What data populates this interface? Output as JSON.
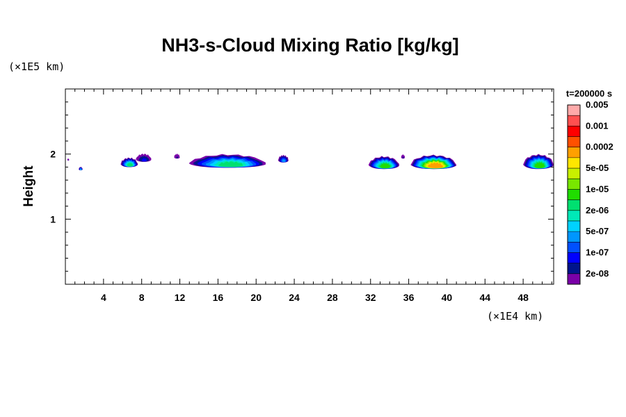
{
  "chart_data": {
    "type": "heatmap",
    "title": "NH3-s-Cloud Mixing Ratio [kg/kg]",
    "ylabel": "Height",
    "xlabel": "",
    "x_unit": "(×1E4 km)",
    "y_unit": "(×1E5 km)",
    "time_label": "t=200000 s",
    "xlim": [
      0,
      51.2
    ],
    "ylim": [
      0,
      3.0
    ],
    "x_ticks": [
      4,
      8,
      12,
      16,
      20,
      24,
      28,
      32,
      36,
      40,
      44,
      48
    ],
    "y_ticks": [
      1,
      2
    ],
    "colorbar": {
      "colors": [
        "#7a00a8",
        "#00148c",
        "#0000ff",
        "#0050ff",
        "#0096ff",
        "#00d2ff",
        "#00e8b8",
        "#00e070",
        "#20dc00",
        "#78e600",
        "#c8f000",
        "#ffe600",
        "#ffa000",
        "#ff5000",
        "#ff0000",
        "#ff5050",
        "#ffaaaa"
      ],
      "labels": [
        "2e-08",
        "1e-07",
        "5e-07",
        "2e-06",
        "1e-05",
        "5e-05",
        "0.0002",
        "0.001",
        "0.005"
      ],
      "label_levels": [
        1,
        3,
        5,
        7,
        9,
        11,
        13,
        15,
        17
      ]
    },
    "clouds": [
      {
        "x0": 0.2,
        "x1": 0.4,
        "yb": 1.9,
        "yt": 1.93,
        "max": 2
      },
      {
        "x0": 1.4,
        "x1": 1.8,
        "yb": 1.75,
        "yt": 1.8,
        "max": 6
      },
      {
        "x0": 5.8,
        "x1": 7.6,
        "yb": 1.8,
        "yt": 1.94,
        "max": 8
      },
      {
        "x0": 7.4,
        "x1": 9.0,
        "yb": 1.88,
        "yt": 2.0,
        "max": 3
      },
      {
        "x0": 11.4,
        "x1": 12.0,
        "yb": 1.93,
        "yt": 2.0,
        "max": 2
      },
      {
        "x0": 13.0,
        "x1": 21.0,
        "yb": 1.79,
        "yt": 1.99,
        "max": 8
      },
      {
        "x0": 22.3,
        "x1": 23.4,
        "yb": 1.87,
        "yt": 1.98,
        "max": 5
      },
      {
        "x0": 31.8,
        "x1": 35.0,
        "yb": 1.77,
        "yt": 1.96,
        "max": 9
      },
      {
        "x0": 35.2,
        "x1": 35.6,
        "yb": 1.93,
        "yt": 1.99,
        "max": 2
      },
      {
        "x0": 36.2,
        "x1": 41.0,
        "yb": 1.77,
        "yt": 1.98,
        "max": 13
      },
      {
        "x0": 48.0,
        "x1": 51.2,
        "yb": 1.77,
        "yt": 1.99,
        "max": 9
      }
    ]
  }
}
